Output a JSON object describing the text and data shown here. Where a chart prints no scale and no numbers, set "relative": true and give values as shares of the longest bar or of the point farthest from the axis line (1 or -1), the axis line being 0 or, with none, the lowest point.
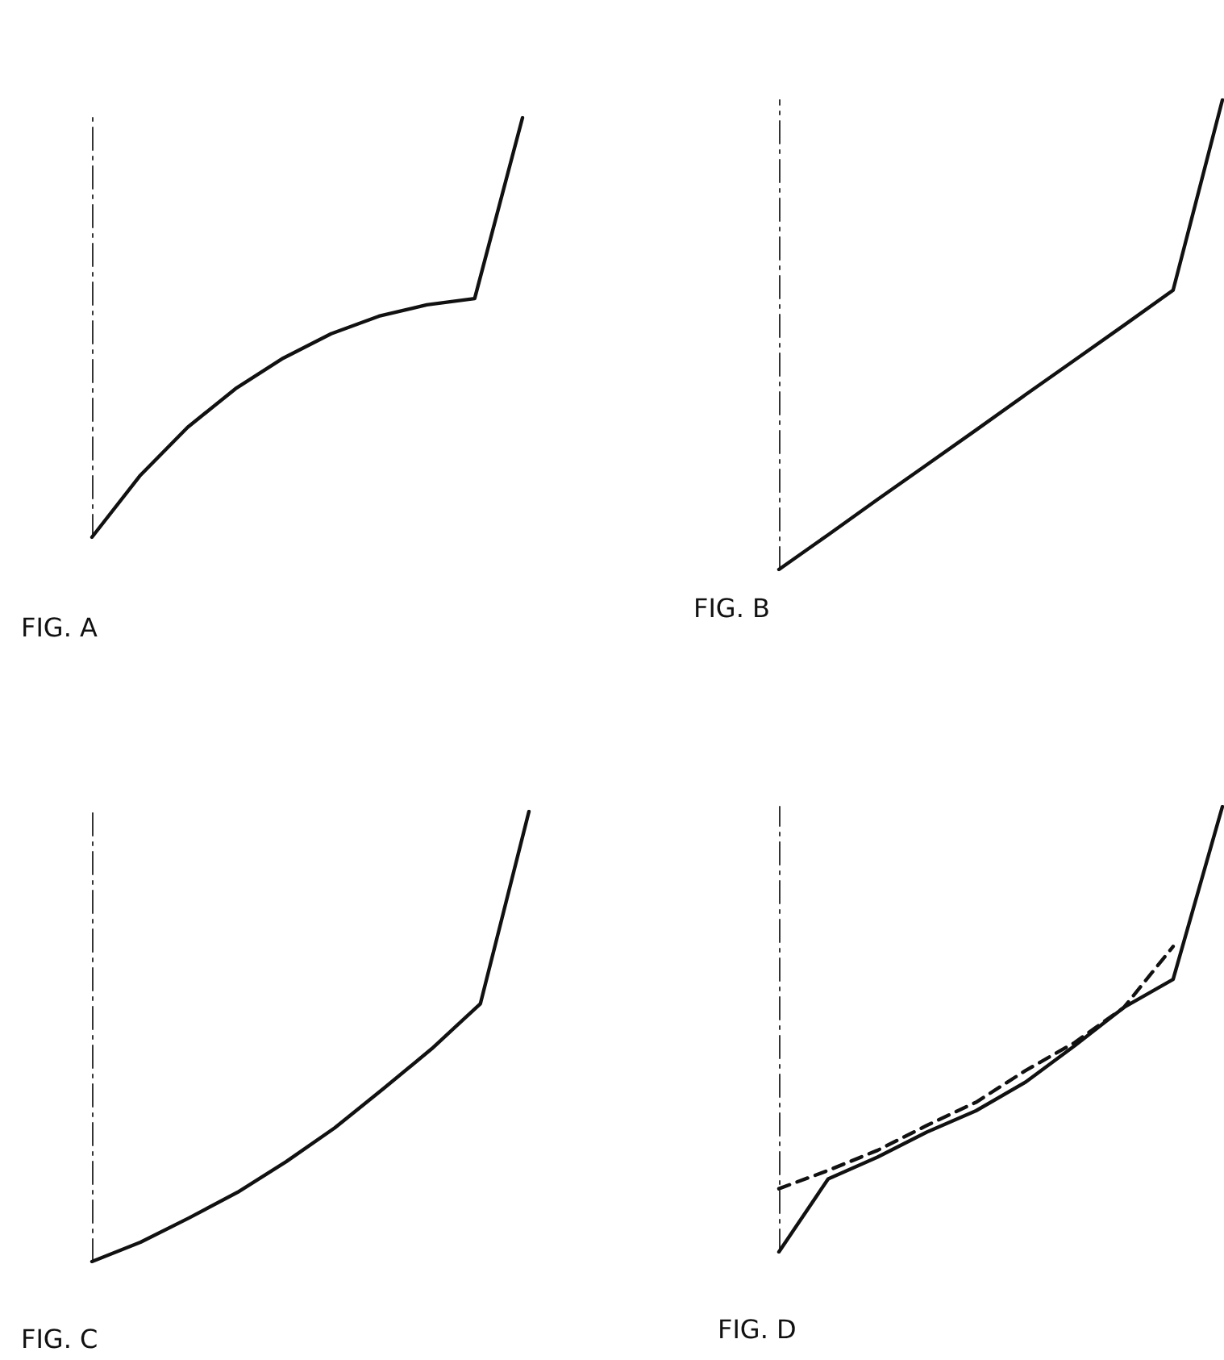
{
  "chart_data": [
    {
      "type": "line",
      "title": "FIG. A",
      "relative": true,
      "marker": "none",
      "line_style": "solid",
      "color": "#111111",
      "categories": [
        null,
        null,
        null,
        null,
        null,
        null,
        null,
        null,
        null,
        null
      ],
      "values": [
        0,
        0.146,
        0.262,
        0.354,
        0.427,
        0.485,
        0.527,
        0.554,
        0.569,
        1
      ]
    },
    {
      "type": "line",
      "title": "FIG. B",
      "relative": true,
      "marker": "none",
      "line_style": "solid",
      "color": "#111111",
      "categories": [
        null,
        null,
        null,
        null,
        null,
        null,
        null,
        null,
        null,
        null
      ],
      "values": [
        0,
        0.074,
        0.149,
        0.223,
        0.297,
        0.372,
        0.446,
        0.52,
        0.595,
        1
      ]
    },
    {
      "type": "line",
      "title": "FIG. C",
      "relative": true,
      "marker": "none",
      "line_style": "solid",
      "color": "#111111",
      "categories": [
        null,
        null,
        null,
        null,
        null,
        null,
        null,
        null,
        null,
        null
      ],
      "values": [
        0,
        0.043,
        0.097,
        0.154,
        0.222,
        0.297,
        0.384,
        0.473,
        0.573,
        1
      ]
    },
    {
      "type": "line",
      "title": "FIG. D",
      "relative": true,
      "marker": "none",
      "categories": [
        null,
        null,
        null,
        null,
        null,
        null,
        null,
        null,
        null,
        null
      ],
      "series": [
        {
          "color": "#111111",
          "line_style": "solid",
          "values": [
            0,
            0.164,
            0.213,
            0.269,
            0.317,
            0.381,
            0.463,
            0.549,
            0.612,
            1
          ]
        },
        {
          "color": "#111111",
          "line_style": "dashed",
          "values": [
            0.142,
            0.183,
            0.228,
            0.284,
            0.336,
            0.407,
            0.47,
            0.549,
            0.686,
            null
          ]
        }
      ]
    }
  ]
}
